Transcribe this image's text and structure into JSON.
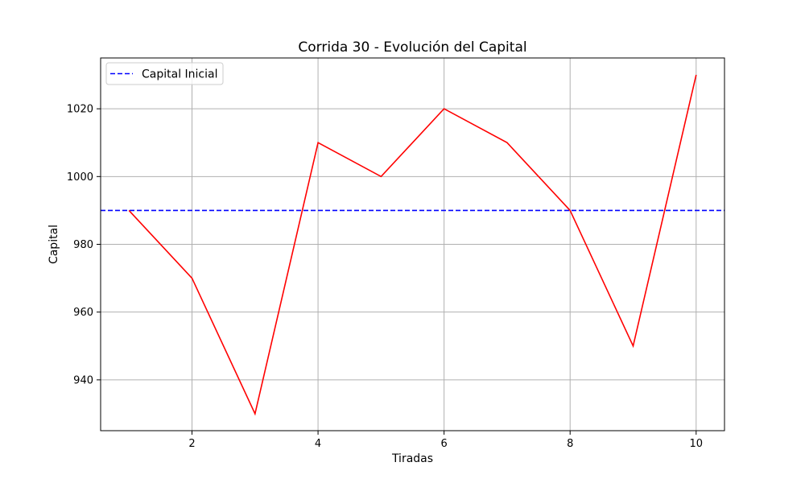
{
  "chart_data": {
    "type": "line",
    "title": "Corrida 30 - Evolución del Capital",
    "xlabel": "Tiradas",
    "ylabel": "Capital",
    "xlim": [
      0.55,
      10.45
    ],
    "ylim": [
      925,
      1035
    ],
    "xticks": [
      2,
      4,
      6,
      8,
      10
    ],
    "yticks": [
      940,
      960,
      980,
      1000,
      1020
    ],
    "grid": true,
    "legend_position": "upper-left",
    "series": [
      {
        "x": [
          1,
          2,
          3,
          4,
          5,
          6,
          7,
          8,
          9,
          10
        ],
        "y": [
          990,
          970,
          930,
          1010,
          1000,
          1020,
          1010,
          990,
          950,
          1030
        ],
        "color": "#ff0000",
        "style": "solid"
      }
    ],
    "reference_lines": [
      {
        "name": "Capital Inicial",
        "y": 990,
        "color": "#0000ff",
        "style": "dashed"
      }
    ]
  }
}
